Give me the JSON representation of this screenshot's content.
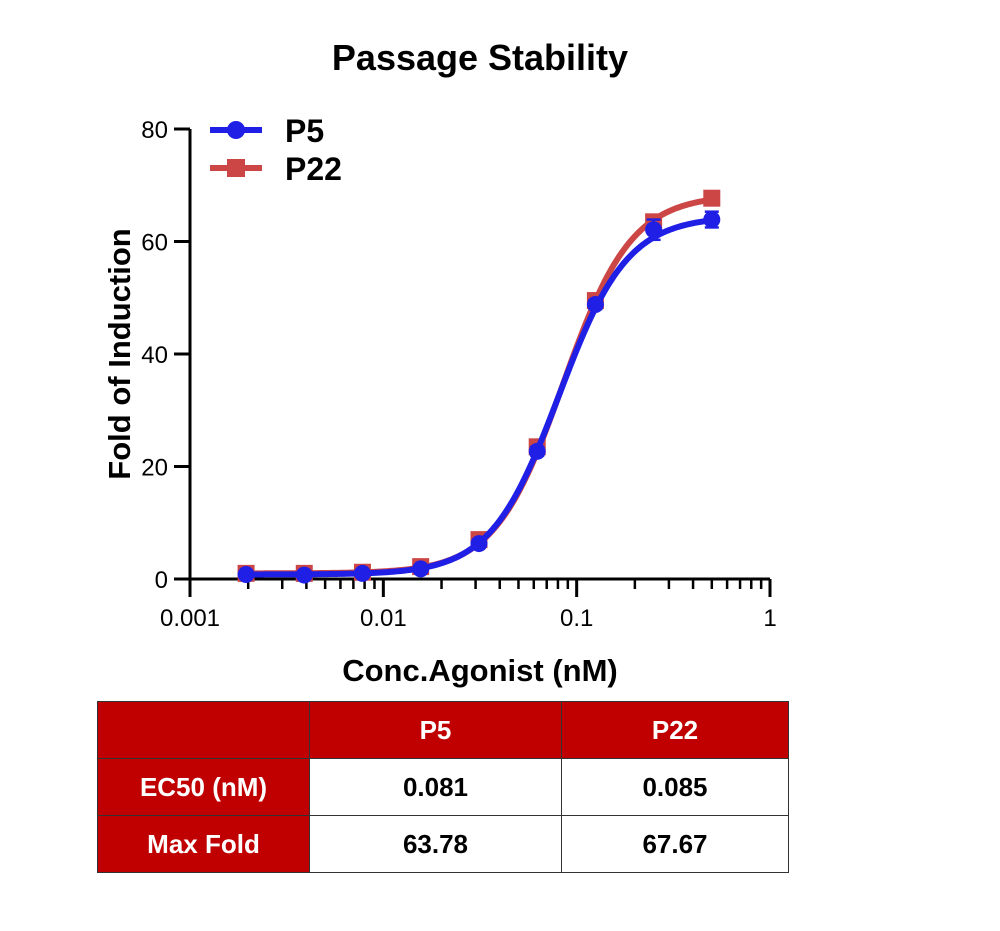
{
  "colors": {
    "p5": "#1f1fe6",
    "p22": "#cd4646",
    "header_bg": "#c00000",
    "header_text": "#ffffff"
  },
  "chart_data": {
    "type": "line",
    "title": "Passage Stability",
    "xlabel": "Conc.Agonist (nM)",
    "ylabel": "Fold of Induction",
    "x_scale": "log",
    "xlim": [
      0.001,
      1
    ],
    "ylim": [
      0,
      80
    ],
    "x_ticks": [
      "0.001",
      "0.01",
      "0.1",
      "1"
    ],
    "y_ticks": [
      "0",
      "20",
      "40",
      "60",
      "80"
    ],
    "legend_position": "top-left",
    "series": [
      {
        "name": "P5",
        "marker": "circle",
        "color": "#1f1fe6",
        "x": [
          0.00195,
          0.0039,
          0.0078,
          0.0156,
          0.03125,
          0.0625,
          0.125,
          0.25,
          0.5
        ],
        "y": [
          0.8,
          0.7,
          1.0,
          1.8,
          6.3,
          22.7,
          48.8,
          62.1,
          63.9
        ],
        "err": [
          0.4,
          0.4,
          0.4,
          0.5,
          0.6,
          0.8,
          0.8,
          1.8,
          1.4
        ],
        "fit": {
          "bottom": 0.8,
          "top": 64.5,
          "ec50": 0.081,
          "hill": 2.45
        }
      },
      {
        "name": "P22",
        "marker": "square",
        "color": "#cd4646",
        "x": [
          0.00195,
          0.0039,
          0.0078,
          0.0156,
          0.03125,
          0.0625,
          0.125,
          0.25,
          0.5
        ],
        "y": [
          1.0,
          1.0,
          1.2,
          2.2,
          7.0,
          23.5,
          49.5,
          63.5,
          67.7
        ],
        "err": [
          0.4,
          0.4,
          0.4,
          0.5,
          0.6,
          0.8,
          0.8,
          1.0,
          0.9
        ],
        "fit": {
          "bottom": 1.0,
          "top": 68.3,
          "ec50": 0.085,
          "hill": 2.45
        }
      }
    ]
  },
  "table": {
    "header": [
      "",
      "P5",
      "P22"
    ],
    "rows": [
      {
        "label": "EC50 (nM)",
        "p5": "0.081",
        "p22": "0.085"
      },
      {
        "label": "Max Fold",
        "p5": "63.78",
        "p22": "67.67"
      }
    ]
  }
}
